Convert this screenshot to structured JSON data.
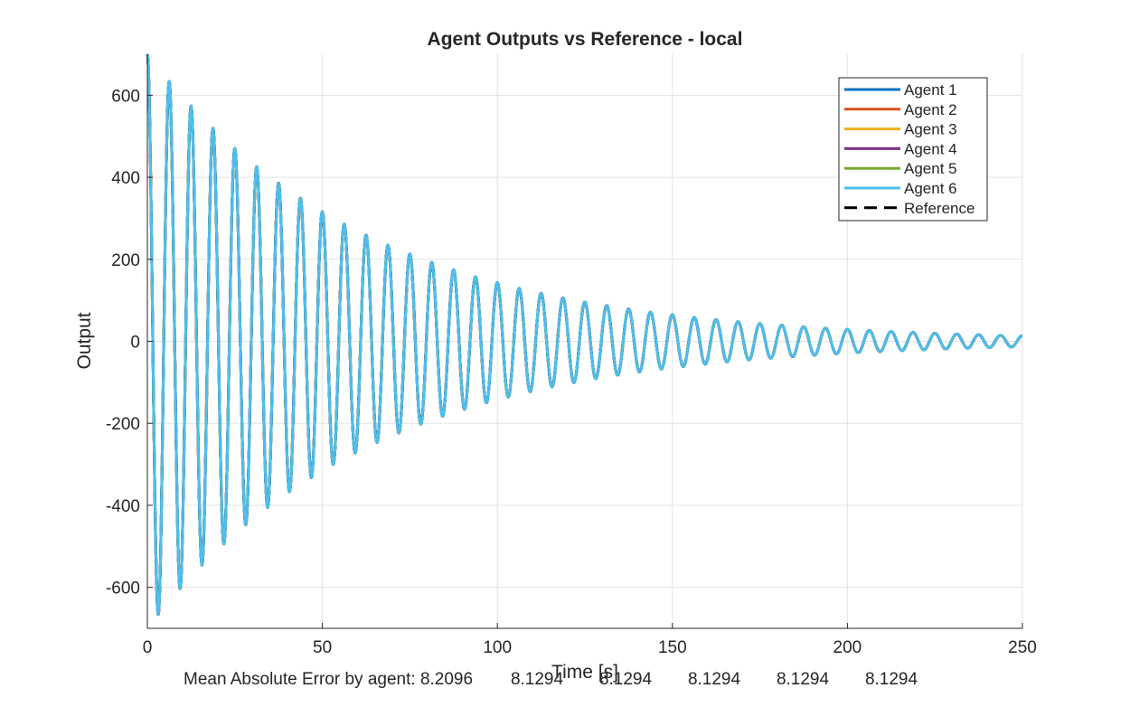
{
  "chart_data": {
    "type": "line",
    "title": "Agent Outputs vs Reference - local",
    "xlabel": "Time [s]",
    "ylabel": "Output",
    "xlim": [
      0,
      250
    ],
    "ylim": [
      -700,
      700
    ],
    "xticks": [
      0,
      50,
      100,
      150,
      200,
      250
    ],
    "yticks": [
      -600,
      -400,
      -200,
      0,
      200,
      400,
      600
    ],
    "grid": true,
    "legend_position": "top-right",
    "signal_model": {
      "form": "amplitude * exp(-decay * t) * cos(2*pi*t/period)",
      "amplitude": 700,
      "decay": 0.0159,
      "period": 6.25
    },
    "sample_points": {
      "t": [
        0,
        3.1,
        6.25,
        9.4,
        12.5,
        18.75,
        25,
        31.25,
        37.5,
        43.75,
        50,
        62.5,
        75,
        87.5,
        100,
        125,
        150,
        175,
        200,
        225,
        250
      ],
      "y": [
        700,
        -668,
        655,
        -620,
        573,
        523,
        470,
        427,
        388,
        352,
        318,
        262,
        213,
        175,
        143,
        95,
        64,
        43,
        29,
        19,
        13
      ]
    },
    "series": [
      {
        "name": "Agent 1",
        "color": "#0072BD",
        "style": "solid"
      },
      {
        "name": "Agent 2",
        "color": "#D95319",
        "style": "solid"
      },
      {
        "name": "Agent 3",
        "color": "#EDB120",
        "style": "solid"
      },
      {
        "name": "Agent 4",
        "color": "#7E2F8E",
        "style": "solid"
      },
      {
        "name": "Agent 5",
        "color": "#77AC30",
        "style": "solid"
      },
      {
        "name": "Reference",
        "color": "#000000",
        "style": "dashed"
      },
      {
        "name": "Agent 6",
        "color": "#4DBEEE",
        "style": "solid"
      }
    ],
    "legend_order": [
      "Agent 1",
      "Agent 2",
      "Agent 3",
      "Agent 4",
      "Agent 5",
      "Agent 6",
      "Reference"
    ]
  },
  "footer": {
    "mae_label": "Mean Absolute Error by agent: ",
    "mae_values": [
      "8.2096",
      "8.1294",
      "8.1294",
      "8.1294",
      "8.1294",
      "8.1294"
    ]
  }
}
